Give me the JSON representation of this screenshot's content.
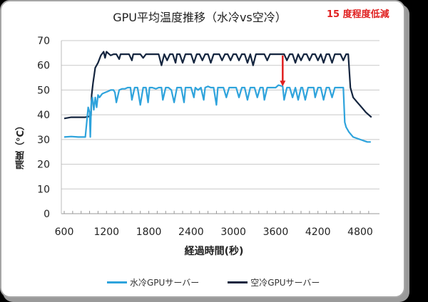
{
  "title": "GPU平均温度推移（水冷vs空冷）",
  "annotation": "15 度程度低減",
  "colors": {
    "water": "#2ea3dc",
    "air": "#14253f",
    "arrow": "#e02020",
    "grid": "#c8c8c8"
  },
  "chart_data": {
    "type": "line",
    "title": "GPU平均温度推移（水冷vs空冷）",
    "xlabel": "経過時間(秒)",
    "ylabel": "温度（°C）",
    "xlim": [
      600,
      5000
    ],
    "ylim": [
      0,
      70
    ],
    "xticks": [
      600,
      1200,
      1800,
      2400,
      3000,
      3600,
      4200,
      4800
    ],
    "yticks": [
      0,
      10,
      20,
      30,
      40,
      50,
      60,
      70
    ],
    "grid": true,
    "legend_position": "bottom",
    "annotation": {
      "text": "15 度程度低減",
      "arrow_x": 3700,
      "arrow_from": 64,
      "arrow_to": 51.5
    },
    "series": [
      {
        "name": "水冷GPUサーバー",
        "color": "#2ea3dc",
        "x": [
          600,
          700,
          800,
          900,
          940,
          960,
          970,
          985,
          1000,
          1020,
          1040,
          1060,
          1080,
          1100,
          1140,
          1180,
          1220,
          1260,
          1300,
          1320,
          1340,
          1380,
          1420,
          1460,
          1500,
          1540,
          1560,
          1600,
          1640,
          1680,
          1720,
          1760,
          1790,
          1810,
          1850,
          1900,
          1940,
          1980,
          2000,
          2040,
          2080,
          2120,
          2160,
          2200,
          2220,
          2260,
          2300,
          2320,
          2360,
          2400,
          2440,
          2460,
          2500,
          2540,
          2580,
          2600,
          2640,
          2680,
          2720,
          2760,
          2780,
          2820,
          2860,
          2900,
          2940,
          2980,
          3000,
          3040,
          3080,
          3120,
          3160,
          3200,
          3240,
          3260,
          3300,
          3340,
          3380,
          3420,
          3440,
          3480,
          3520,
          3560,
          3600,
          3640,
          3700,
          3720,
          3760,
          3800,
          3840,
          3880,
          3920,
          3960,
          3980,
          4020,
          4060,
          4100,
          4140,
          4160,
          4200,
          4240,
          4280,
          4320,
          4360,
          4400,
          4440,
          4480,
          4520,
          4560,
          4580,
          4600,
          4640,
          4700,
          4800,
          4900,
          4950
        ],
        "values": [
          31,
          31.2,
          31,
          31,
          43,
          41,
          31,
          45,
          47,
          42,
          47,
          43,
          48,
          47,
          48.5,
          49,
          49.5,
          50,
          50,
          49,
          45,
          50,
          50.5,
          50.5,
          51,
          51,
          46,
          51,
          51,
          44,
          51,
          51,
          45,
          51,
          51,
          50.5,
          51,
          51,
          46,
          51,
          51,
          50,
          45,
          51,
          51,
          51,
          45,
          51,
          51,
          51,
          47,
          51,
          50,
          51,
          46,
          51,
          51.5,
          51,
          51,
          44,
          51,
          51,
          51,
          47,
          51,
          51,
          51,
          51,
          47,
          51,
          51,
          46,
          51,
          51,
          51,
          47,
          51,
          51,
          46,
          51,
          51,
          51,
          51,
          52,
          51.5,
          46,
          51,
          51,
          47,
          51,
          46,
          51,
          51,
          46,
          51,
          51,
          51,
          47,
          51,
          51,
          46,
          51,
          51,
          47,
          51,
          51,
          51,
          51,
          37,
          35,
          33,
          31,
          30,
          29,
          29
        ]
      },
      {
        "name": "空冷GPUサーバー",
        "color": "#14253f",
        "x": [
          600,
          700,
          800,
          900,
          980,
          990,
          1010,
          1040,
          1080,
          1120,
          1160,
          1180,
          1200,
          1220,
          1260,
          1300,
          1340,
          1380,
          1400,
          1440,
          1480,
          1520,
          1560,
          1580,
          1600,
          1640,
          1680,
          1720,
          1760,
          1800,
          1840,
          1880,
          1900,
          1940,
          1980,
          2020,
          2060,
          2100,
          2140,
          2180,
          2200,
          2240,
          2280,
          2320,
          2360,
          2400,
          2440,
          2480,
          2520,
          2560,
          2600,
          2640,
          2680,
          2720,
          2760,
          2800,
          2840,
          2880,
          2920,
          2960,
          3000,
          3040,
          3080,
          3120,
          3160,
          3200,
          3240,
          3280,
          3320,
          3360,
          3400,
          3440,
          3480,
          3520,
          3560,
          3600,
          3640,
          3680,
          3720,
          3760,
          3800,
          3840,
          3880,
          3920,
          3960,
          4000,
          4040,
          4080,
          4120,
          4160,
          4200,
          4240,
          4280,
          4320,
          4360,
          4400,
          4440,
          4480,
          4520,
          4560,
          4600,
          4630,
          4660,
          4700,
          4760,
          4820,
          4880,
          4940,
          4960
        ],
        "values": [
          38.5,
          39,
          39,
          39,
          39.5,
          48,
          53,
          59,
          61,
          64,
          65.5,
          63,
          65.5,
          65,
          64,
          64.5,
          64.5,
          62.5,
          64.5,
          64.5,
          64.5,
          64.5,
          62,
          64.5,
          64.5,
          64.5,
          64.5,
          63,
          64.5,
          64.5,
          64.5,
          64.5,
          64.5,
          64.5,
          60,
          64.5,
          62,
          64.5,
          64.5,
          61,
          64.5,
          64.5,
          61,
          64.5,
          64.5,
          64.5,
          61,
          64.5,
          64.5,
          62,
          64.5,
          64.5,
          61,
          64.5,
          64.5,
          64.5,
          62,
          64.5,
          64.5,
          62,
          64.5,
          64.5,
          62,
          64.5,
          64.5,
          61,
          64.5,
          60,
          64.5,
          64.5,
          64.5,
          64.5,
          62,
          64.5,
          64.5,
          64.5,
          64.5,
          64.5,
          64.5,
          62,
          64.5,
          64.5,
          61,
          64.5,
          62,
          64.5,
          64.5,
          62,
          64.5,
          64.5,
          62,
          64.5,
          61,
          64.5,
          64.5,
          61,
          64.5,
          64.5,
          64.5,
          62,
          64.5,
          64.5,
          51,
          47,
          45,
          43,
          41,
          39.5,
          39
        ]
      }
    ]
  },
  "legend": [
    {
      "label": "水冷GPUサーバー",
      "color": "#2ea3dc"
    },
    {
      "label": "空冷GPUサーバー",
      "color": "#14253f"
    }
  ]
}
